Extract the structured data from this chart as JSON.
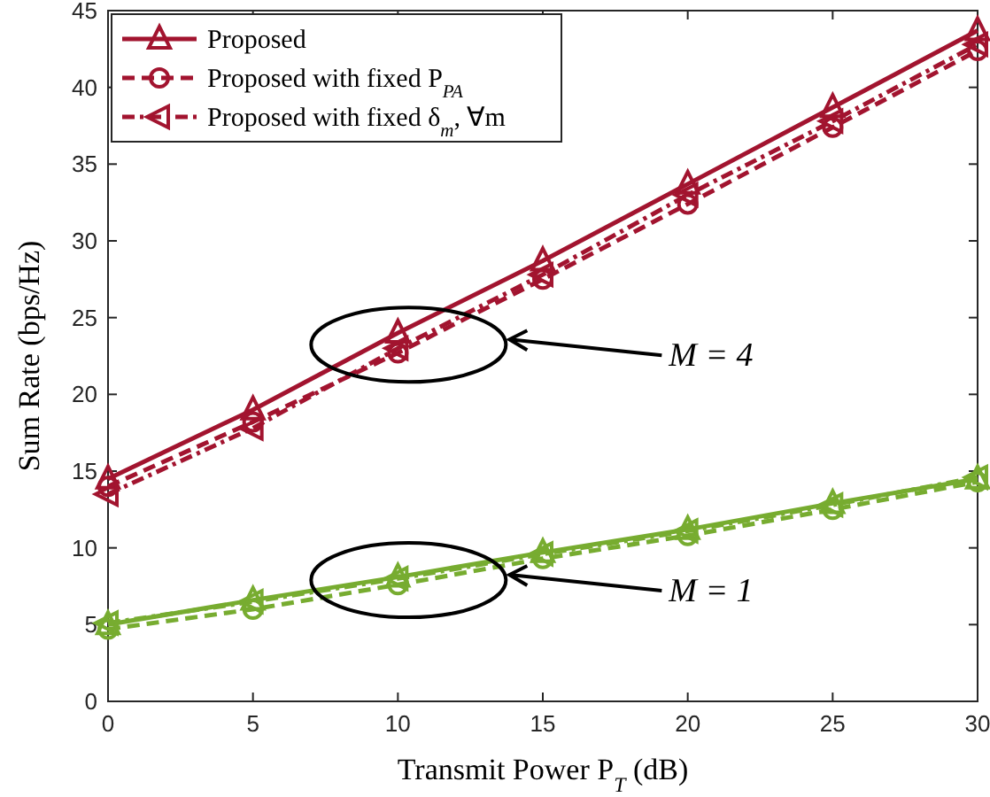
{
  "chart_data": {
    "type": "line",
    "xlabel": "Transmit Power P$_{T}$ (dB)",
    "ylabel": "Sum Rate (bps/Hz)",
    "x": [
      0,
      5,
      10,
      15,
      20,
      25,
      30
    ],
    "xlim": [
      0,
      30
    ],
    "xticks": [
      0,
      5,
      10,
      15,
      20,
      25,
      30
    ],
    "ylim": [
      0,
      45
    ],
    "yticks": [
      0,
      5,
      10,
      15,
      20,
      25,
      30,
      35,
      40,
      45
    ],
    "grid": false,
    "legend": "top left",
    "series": [
      {
        "name": "Proposed",
        "color": "#a2142f",
        "marker": "triangle",
        "line_style": "solid",
        "values": [
          14.5,
          19,
          24,
          28.7,
          33.7,
          38.7,
          43.7
        ]
      },
      {
        "name": "Proposed with fixed P$_{PA}$",
        "color": "#a2142f",
        "marker": "circle",
        "line_style": "dashed",
        "values": [
          14,
          18.2,
          22.7,
          27.5,
          32.4,
          37.4,
          42.4
        ]
      },
      {
        "name": "Proposed with fixed δ$_{m}$, ∀m",
        "color": "#a2142f",
        "marker": "triangle-left",
        "line_style": "dashdot",
        "values": [
          13.5,
          17.8,
          23,
          27.8,
          33,
          37.8,
          42.8
        ]
      },
      {
        "color": "#77ac30",
        "marker": "triangle",
        "line_style": "solid",
        "values": [
          5,
          6.6,
          8.1,
          9.7,
          11.2,
          12.9,
          14.5
        ]
      },
      {
        "color": "#77ac30",
        "marker": "circle",
        "line_style": "dashed",
        "values": [
          4.7,
          6,
          7.6,
          9.3,
          10.8,
          12.5,
          14.3
        ]
      },
      {
        "color": "#77ac30",
        "marker": "triangle-left",
        "line_style": "dashdot",
        "values": [
          5.1,
          6.5,
          8,
          9.6,
          11.1,
          12.8,
          14.6
        ]
      }
    ],
    "annotations": [
      "M = 4",
      "M = 1"
    ]
  }
}
